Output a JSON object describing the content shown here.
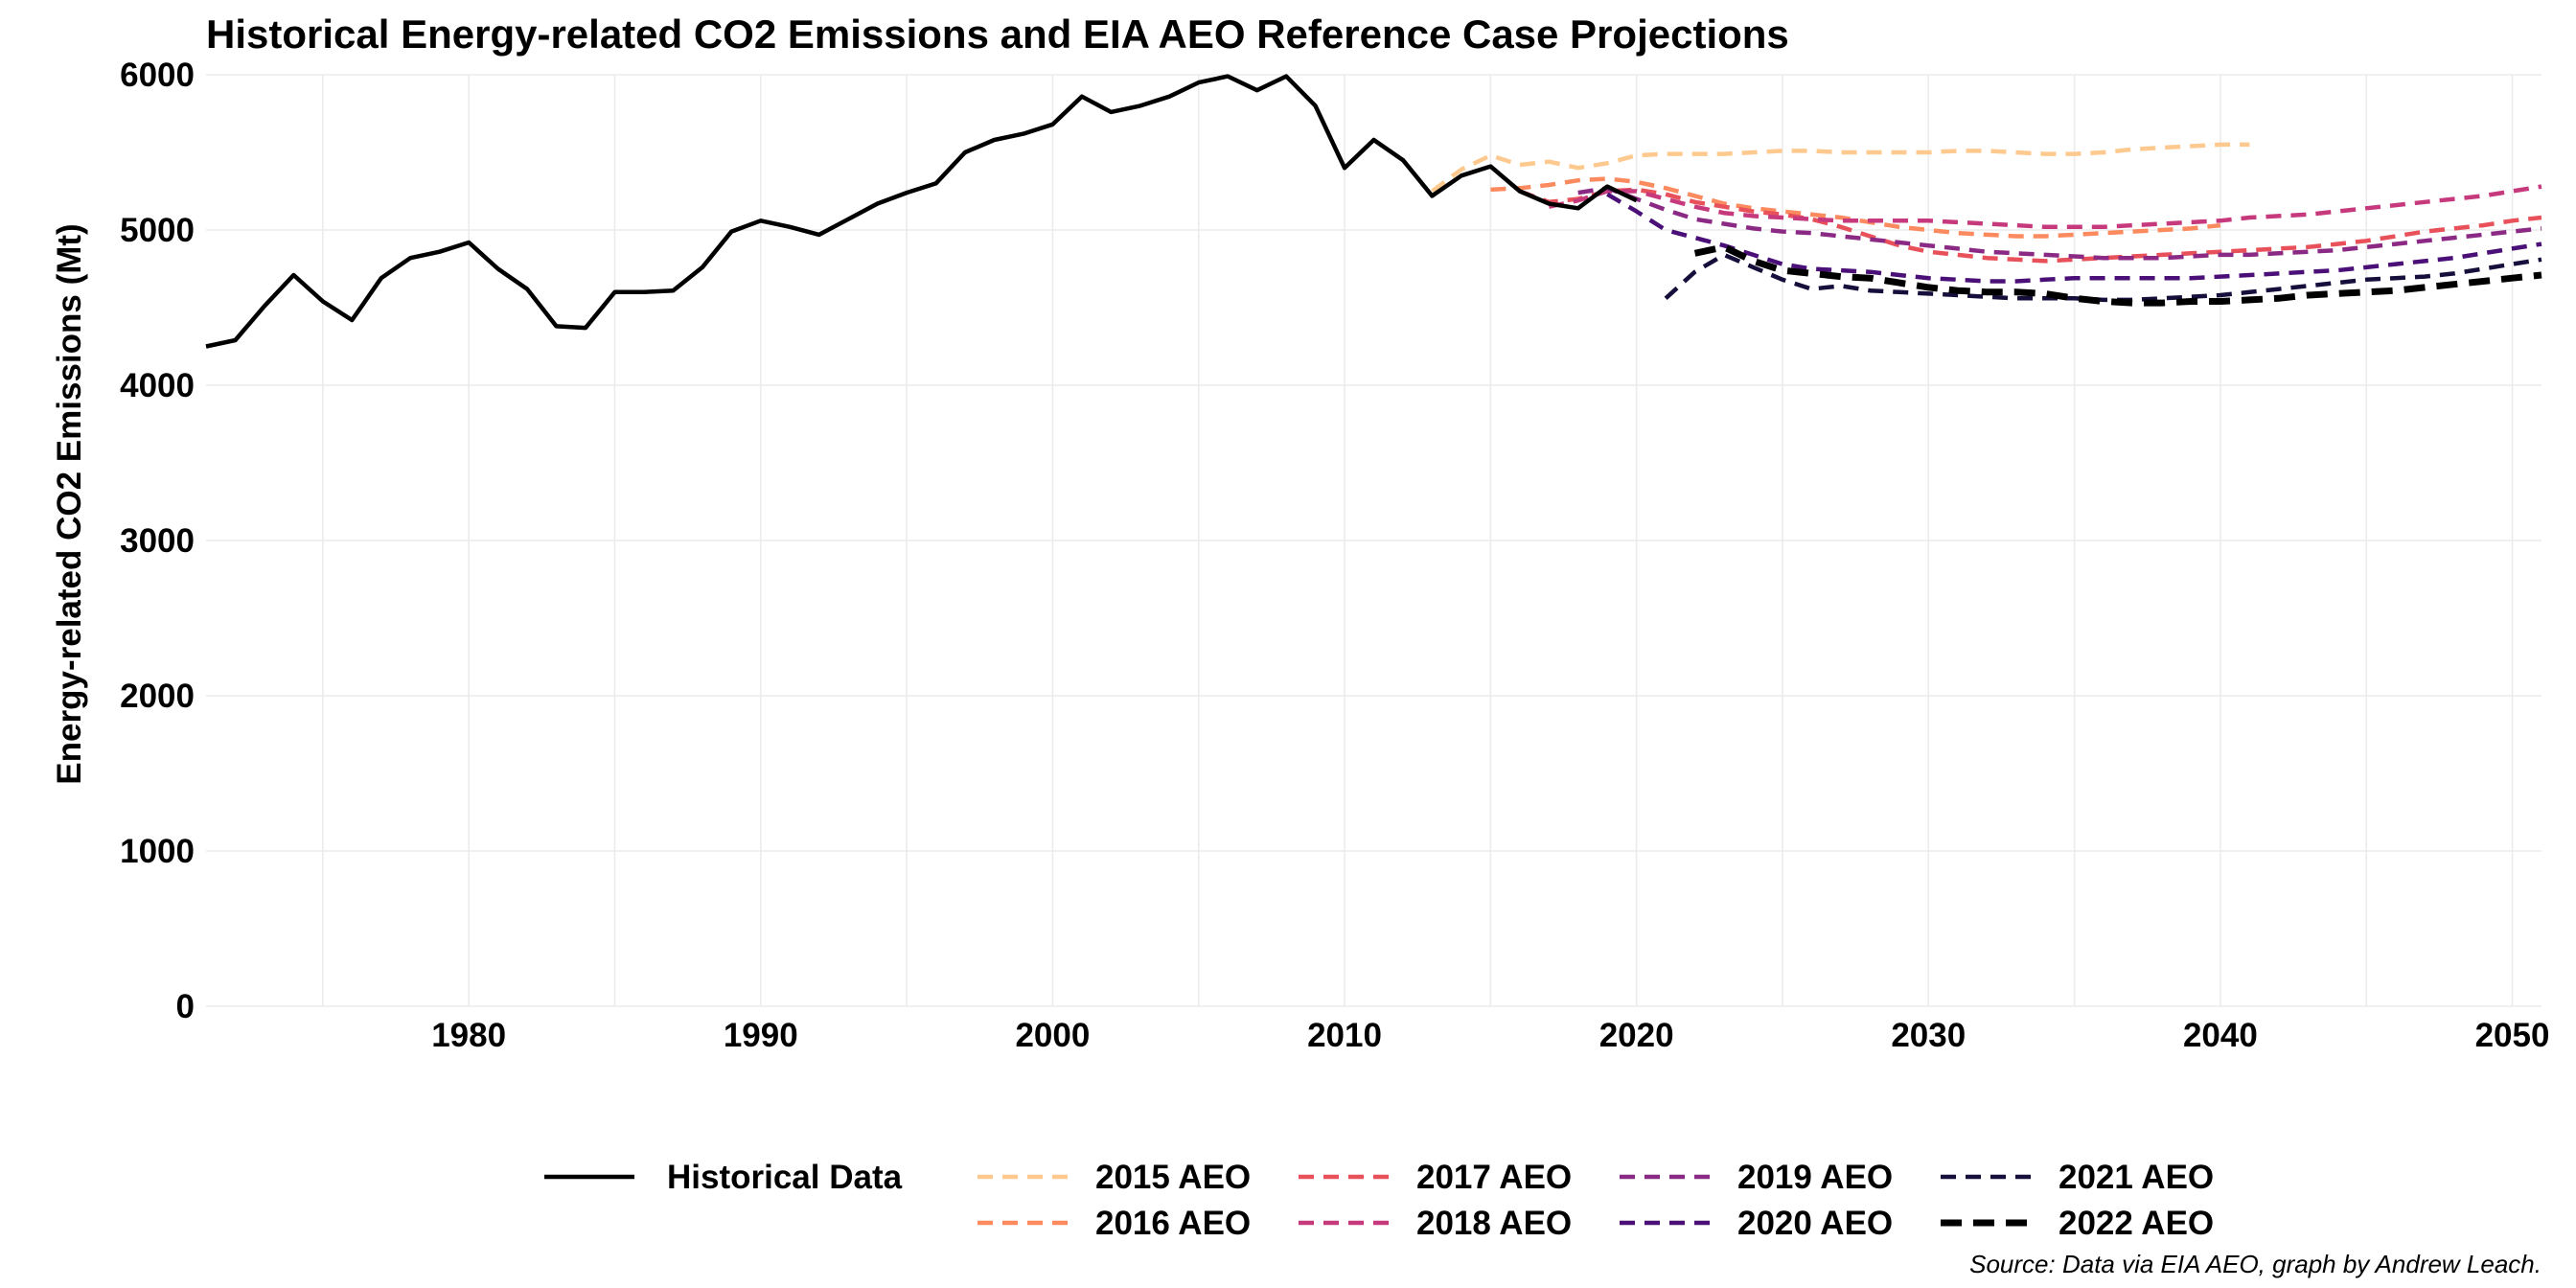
{
  "chart_data": {
    "type": "line",
    "title": "Historical Energy-related CO2 Emissions and EIA AEO Reference Case Projections",
    "ylabel": "Energy-related CO2 Emissions (Mt)",
    "xlabel": "",
    "caption": "Source: Data via EIA AEO, graph by Andrew Leach.",
    "xlim": [
      1971,
      2051
    ],
    "ylim": [
      0,
      6000
    ],
    "xticks": [
      1980,
      1990,
      2000,
      2010,
      2020,
      2030,
      2040,
      2050
    ],
    "yticks": [
      0,
      1000,
      2000,
      3000,
      4000,
      5000,
      6000
    ],
    "grid": true,
    "legend_position": "bottom",
    "series": [
      {
        "name": "Historical Data",
        "color": "#000000",
        "style": "solid",
        "width": 4.5,
        "x": [
          1971,
          1972,
          1973,
          1974,
          1975,
          1976,
          1977,
          1978,
          1979,
          1980,
          1981,
          1982,
          1983,
          1984,
          1985,
          1986,
          1987,
          1988,
          1989,
          1990,
          1991,
          1992,
          1993,
          1994,
          1995,
          1996,
          1997,
          1998,
          1999,
          2000,
          2001,
          2002,
          2003,
          2004,
          2005,
          2006,
          2007,
          2008,
          2009,
          2010,
          2011,
          2012,
          2013,
          2014,
          2015,
          2016,
          2017,
          2018,
          2019,
          2020
        ],
        "y": [
          4250,
          4290,
          4510,
          4710,
          4540,
          4420,
          4690,
          4820,
          4860,
          4920,
          4750,
          4620,
          4380,
          4370,
          4600,
          4600,
          4610,
          4760,
          4990,
          5060,
          5020,
          4970,
          5070,
          5170,
          5240,
          5300,
          5500,
          5580,
          5620,
          5680,
          5860,
          5760,
          5800,
          5860,
          5950,
          5990,
          5900,
          5990,
          5800,
          5400,
          5580,
          5450,
          5220,
          5350,
          5410,
          5250,
          5170,
          5140,
          5280,
          5190
        ]
      },
      {
        "name": "2015 AEO",
        "color": "#fdc98e",
        "style": "dashed",
        "width": 4.5,
        "x": [
          2013,
          2014,
          2015,
          2016,
          2017,
          2018,
          2019,
          2020,
          2021,
          2022,
          2023,
          2024,
          2025,
          2026,
          2027,
          2028,
          2029,
          2030,
          2031,
          2032,
          2033,
          2034,
          2035,
          2036,
          2037,
          2038,
          2039,
          2040,
          2041
        ],
        "y": [
          5250,
          5390,
          5480,
          5420,
          5440,
          5400,
          5430,
          5480,
          5490,
          5490,
          5490,
          5500,
          5510,
          5510,
          5500,
          5500,
          5500,
          5500,
          5510,
          5510,
          5500,
          5490,
          5490,
          5500,
          5520,
          5530,
          5540,
          5550,
          5550
        ]
      },
      {
        "name": "2016 AEO",
        "color": "#fb8a5f",
        "style": "dashed",
        "width": 4.5,
        "x": [
          2015,
          2016,
          2017,
          2018,
          2019,
          2020,
          2021,
          2022,
          2023,
          2024,
          2025,
          2026,
          2027,
          2028,
          2029,
          2030,
          2031,
          2032,
          2033,
          2034,
          2035,
          2036,
          2037,
          2038,
          2039,
          2040
        ],
        "y": [
          5260,
          5270,
          5290,
          5320,
          5330,
          5310,
          5270,
          5220,
          5170,
          5140,
          5120,
          5100,
          5080,
          5050,
          5020,
          5000,
          4980,
          4970,
          4960,
          4960,
          4970,
          4980,
          4990,
          5000,
          5010,
          5030
        ]
      },
      {
        "name": "2017 AEO",
        "color": "#e8505a",
        "style": "dashed",
        "width": 4.5,
        "x": [
          2016,
          2017,
          2018,
          2019,
          2020,
          2021,
          2022,
          2023,
          2024,
          2025,
          2026,
          2027,
          2028,
          2029,
          2030,
          2031,
          2032,
          2033,
          2034,
          2035,
          2036,
          2037,
          2038,
          2039,
          2040,
          2041,
          2042,
          2043,
          2044,
          2045,
          2046,
          2047,
          2048,
          2049,
          2050,
          2051
        ],
        "y": [
          5250,
          5180,
          5200,
          5250,
          5260,
          5230,
          5180,
          5150,
          5120,
          5100,
          5070,
          5020,
          4960,
          4900,
          4860,
          4840,
          4820,
          4810,
          4800,
          4810,
          4820,
          4830,
          4840,
          4850,
          4860,
          4870,
          4880,
          4890,
          4910,
          4930,
          4960,
          4990,
          5010,
          5030,
          5060,
          5080
        ]
      },
      {
        "name": "2018 AEO",
        "color": "#c63a7d",
        "style": "dashed",
        "width": 4.5,
        "x": [
          2017,
          2018,
          2019,
          2020,
          2021,
          2022,
          2023,
          2024,
          2025,
          2026,
          2027,
          2028,
          2029,
          2030,
          2031,
          2032,
          2033,
          2034,
          2035,
          2036,
          2037,
          2038,
          2039,
          2040,
          2041,
          2042,
          2043,
          2044,
          2045,
          2046,
          2047,
          2048,
          2049,
          2050,
          2051
        ],
        "y": [
          5150,
          5190,
          5250,
          5250,
          5200,
          5150,
          5110,
          5090,
          5080,
          5070,
          5060,
          5060,
          5060,
          5060,
          5050,
          5040,
          5030,
          5020,
          5020,
          5020,
          5030,
          5040,
          5050,
          5060,
          5080,
          5090,
          5100,
          5120,
          5140,
          5160,
          5180,
          5200,
          5220,
          5250,
          5280
        ]
      },
      {
        "name": "2019 AEO",
        "color": "#8b2a85",
        "style": "dashed",
        "width": 4.5,
        "x": [
          2018,
          2019,
          2020,
          2021,
          2022,
          2023,
          2024,
          2025,
          2026,
          2027,
          2028,
          2029,
          2030,
          2031,
          2032,
          2033,
          2034,
          2035,
          2036,
          2037,
          2038,
          2039,
          2040,
          2041,
          2042,
          2043,
          2044,
          2045,
          2046,
          2047,
          2048,
          2049,
          2050,
          2051
        ],
        "y": [
          5240,
          5270,
          5200,
          5130,
          5070,
          5040,
          5010,
          4990,
          4980,
          4960,
          4940,
          4920,
          4900,
          4880,
          4860,
          4850,
          4840,
          4830,
          4820,
          4820,
          4820,
          4830,
          4840,
          4840,
          4850,
          4860,
          4870,
          4890,
          4910,
          4930,
          4950,
          4970,
          4990,
          5010
        ]
      },
      {
        "name": "2020 AEO",
        "color": "#4a1078",
        "style": "dashed",
        "width": 4.5,
        "x": [
          2019,
          2020,
          2021,
          2022,
          2023,
          2024,
          2025,
          2026,
          2027,
          2028,
          2029,
          2030,
          2031,
          2032,
          2033,
          2034,
          2035,
          2036,
          2037,
          2038,
          2039,
          2040,
          2041,
          2042,
          2043,
          2044,
          2045,
          2046,
          2047,
          2048,
          2049,
          2050,
          2051
        ],
        "y": [
          5230,
          5120,
          5000,
          4950,
          4900,
          4840,
          4780,
          4750,
          4740,
          4730,
          4710,
          4690,
          4680,
          4670,
          4670,
          4680,
          4690,
          4690,
          4690,
          4690,
          4690,
          4700,
          4710,
          4720,
          4730,
          4740,
          4760,
          4780,
          4800,
          4820,
          4850,
          4880,
          4910
        ]
      },
      {
        "name": "2021 AEO",
        "color": "#160f3b",
        "style": "dashed",
        "width": 4.5,
        "x": [
          2021,
          2022,
          2023,
          2024,
          2025,
          2026,
          2027,
          2028,
          2029,
          2030,
          2031,
          2032,
          2033,
          2034,
          2035,
          2036,
          2037,
          2038,
          2039,
          2040,
          2041,
          2042,
          2043,
          2044,
          2045,
          2046,
          2047,
          2048,
          2049,
          2050,
          2051
        ],
        "y": [
          4560,
          4730,
          4840,
          4760,
          4680,
          4620,
          4640,
          4610,
          4600,
          4590,
          4580,
          4570,
          4560,
          4560,
          4560,
          4550,
          4550,
          4560,
          4570,
          4580,
          4600,
          4620,
          4640,
          4660,
          4680,
          4690,
          4700,
          4720,
          4750,
          4780,
          4810
        ]
      },
      {
        "name": "2022 AEO",
        "color": "#000000",
        "style": "dashed-bold",
        "width": 7,
        "x": [
          2022,
          2023,
          2024,
          2025,
          2026,
          2027,
          2028,
          2029,
          2030,
          2031,
          2032,
          2033,
          2034,
          2035,
          2036,
          2037,
          2038,
          2039,
          2040,
          2041,
          2042,
          2043,
          2044,
          2045,
          2046,
          2047,
          2048,
          2049,
          2050,
          2051
        ],
        "y": [
          4850,
          4890,
          4800,
          4740,
          4720,
          4700,
          4690,
          4660,
          4630,
          4610,
          4600,
          4600,
          4590,
          4560,
          4540,
          4530,
          4530,
          4540,
          4540,
          4550,
          4560,
          4580,
          4590,
          4600,
          4610,
          4630,
          4650,
          4670,
          4690,
          4710
        ]
      }
    ]
  }
}
